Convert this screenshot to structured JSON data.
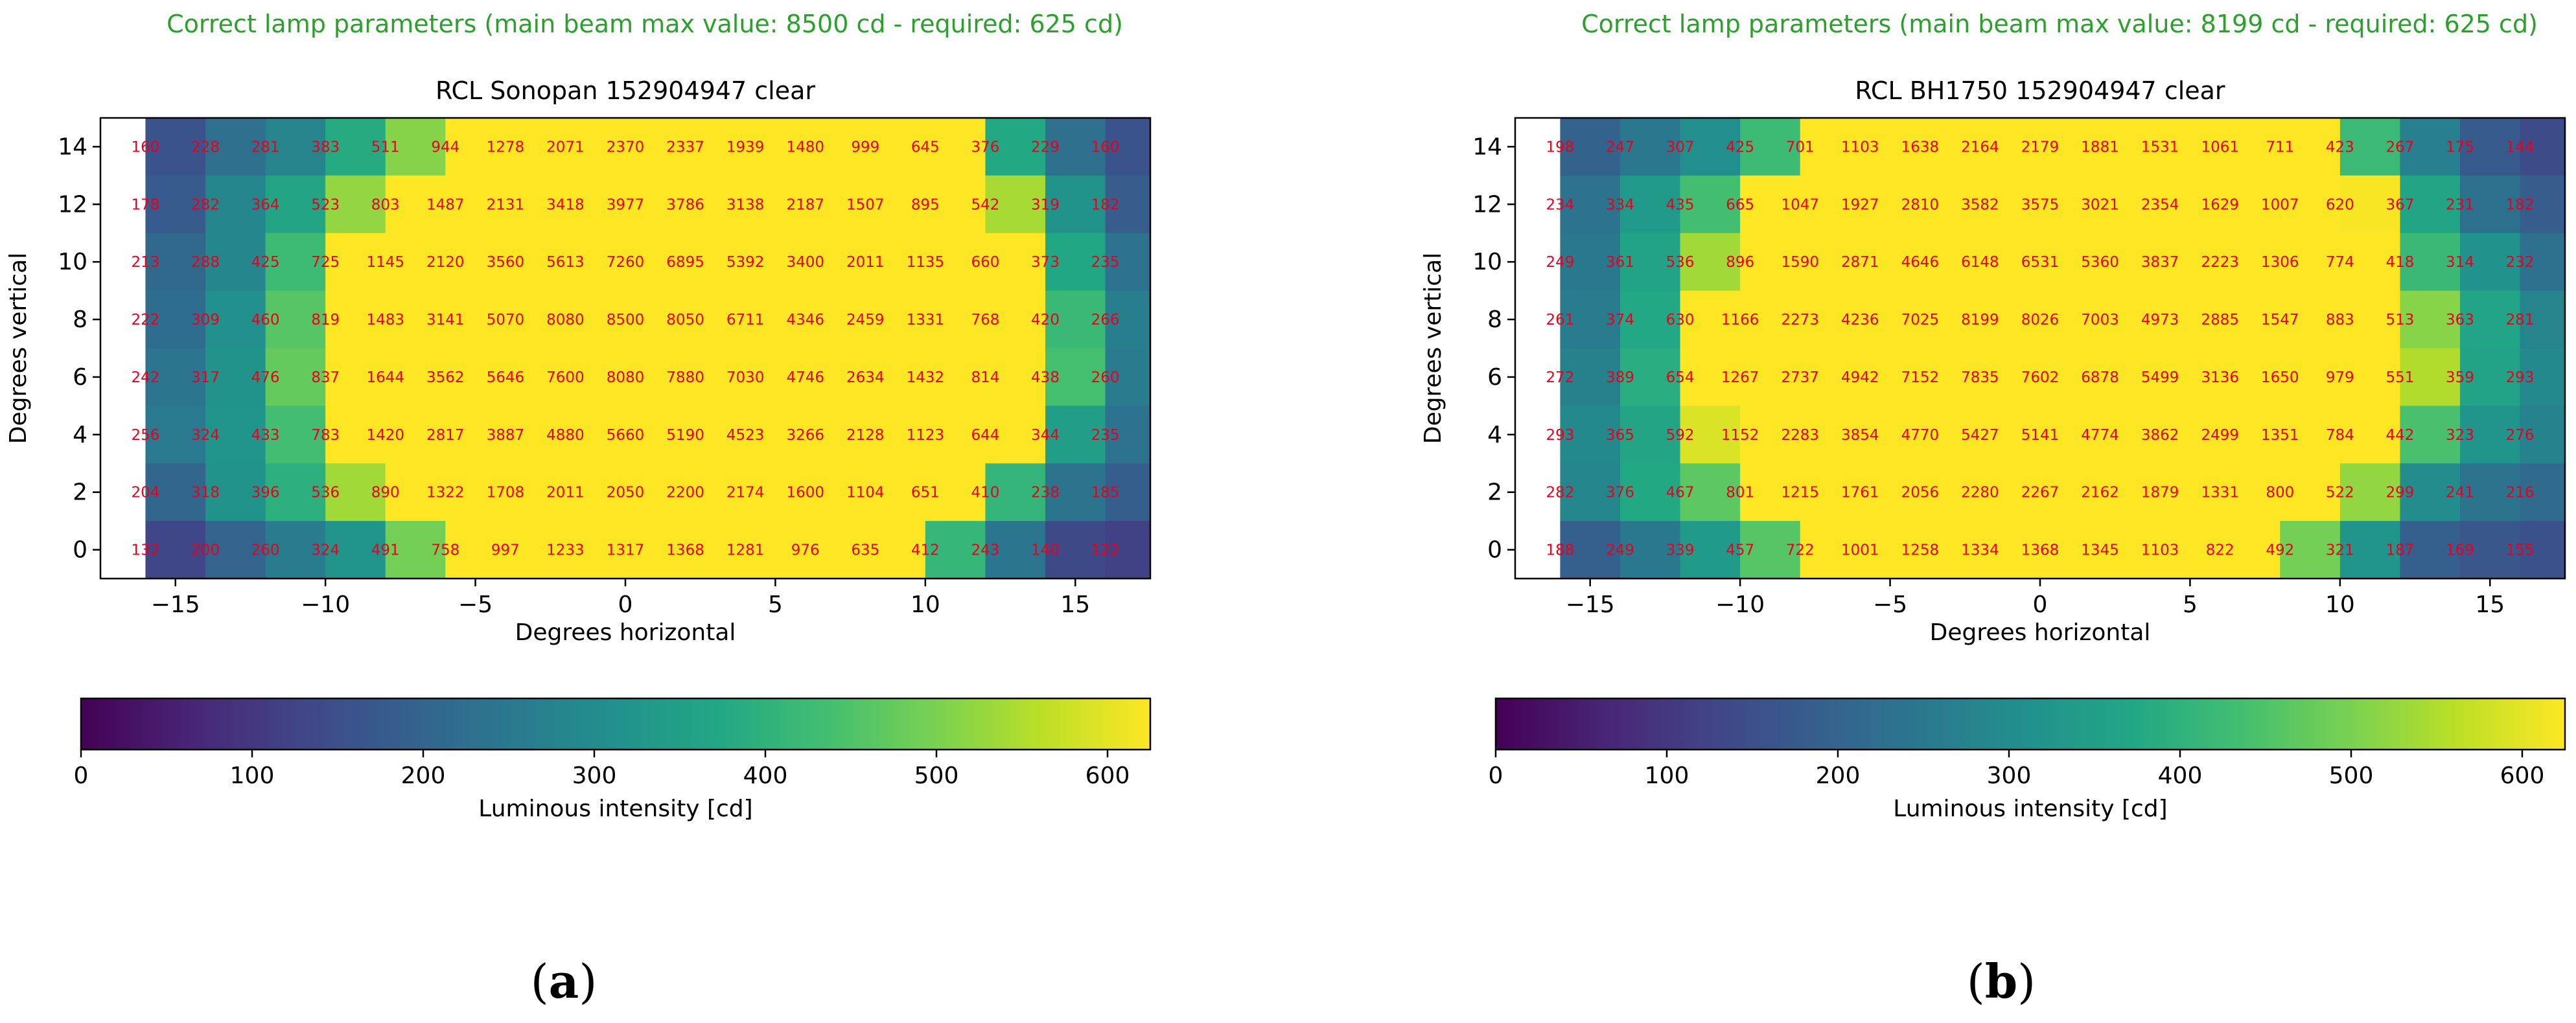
{
  "chart_data": [
    {
      "type": "heatmap",
      "status": "Correct lamp parameters (main beam max value: 8500 cd - required: 625 cd)",
      "status_color": "#2ca02c",
      "title": "RCL Sonopan 152904947 clear",
      "xlabel": "Degrees horizontal",
      "ylabel": "Degrees vertical",
      "xlim": [
        -17.5,
        17.5
      ],
      "ylim": [
        -1,
        15
      ],
      "x_ticks": [
        -15,
        -10,
        -5,
        0,
        5,
        10,
        15
      ],
      "y_ticks": [
        0,
        2,
        4,
        6,
        8,
        10,
        12,
        14
      ],
      "x": [
        -15,
        -13,
        -11,
        -9,
        -7,
        -5,
        -3,
        -1,
        1,
        3,
        5,
        7,
        9,
        11,
        13,
        15,
        17
      ],
      "y": [
        14,
        12,
        10,
        8,
        6,
        4,
        2,
        0
      ],
      "values": [
        [
          160,
          228,
          281,
          383,
          511,
          944,
          1278,
          2071,
          2370,
          2337,
          1939,
          1480,
          999,
          645,
          376,
          229,
          160
        ],
        [
          178,
          282,
          364,
          523,
          803,
          1487,
          2131,
          3418,
          3977,
          3786,
          3138,
          2187,
          1507,
          895,
          542,
          319,
          182
        ],
        [
          213,
          288,
          425,
          725,
          1145,
          2120,
          3560,
          5613,
          7260,
          6895,
          5392,
          3400,
          2011,
          1135,
          660,
          373,
          235
        ],
        [
          222,
          309,
          460,
          819,
          1483,
          3141,
          5070,
          8080,
          8500,
          8050,
          6711,
          4346,
          2459,
          1331,
          768,
          420,
          266
        ],
        [
          242,
          317,
          476,
          837,
          1644,
          3562,
          5646,
          7600,
          8080,
          7880,
          7030,
          4746,
          2634,
          1432,
          814,
          438,
          260
        ],
        [
          256,
          324,
          433,
          783,
          1420,
          2817,
          3887,
          4880,
          5660,
          5190,
          4523,
          3266,
          2128,
          1123,
          644,
          344,
          235
        ],
        [
          204,
          318,
          396,
          536,
          890,
          1322,
          1708,
          2011,
          2050,
          2200,
          2174,
          1600,
          1104,
          651,
          410,
          238,
          185
        ],
        [
          132,
          200,
          260,
          324,
          491,
          758,
          997,
          1233,
          1317,
          1368,
          1281,
          976,
          635,
          412,
          243,
          140,
          122
        ]
      ],
      "value_label_color": "#e8001c",
      "colorbar": {
        "label": "Luminous intensity [cd]",
        "range": [
          0,
          625
        ],
        "ticks": [
          0,
          100,
          200,
          300,
          400,
          500,
          600
        ],
        "colormap": "viridis"
      },
      "caption": "(a)"
    },
    {
      "type": "heatmap",
      "status": "Correct lamp parameters (main beam max value: 8199 cd - required: 625 cd)",
      "status_color": "#2ca02c",
      "title": "RCL BH1750 152904947 clear",
      "xlabel": "Degrees horizontal",
      "ylabel": "Degrees vertical",
      "xlim": [
        -17.5,
        17.5
      ],
      "ylim": [
        -1,
        15
      ],
      "x_ticks": [
        -15,
        -10,
        -5,
        0,
        5,
        10,
        15
      ],
      "y_ticks": [
        0,
        2,
        4,
        6,
        8,
        10,
        12,
        14
      ],
      "x": [
        -15,
        -13,
        -11,
        -9,
        -7,
        -5,
        -3,
        -1,
        1,
        3,
        5,
        7,
        9,
        11,
        13,
        15,
        17
      ],
      "y": [
        14,
        12,
        10,
        8,
        6,
        4,
        2,
        0
      ],
      "values": [
        [
          198,
          247,
          307,
          425,
          701,
          1103,
          1638,
          2164,
          2179,
          1881,
          1531,
          1061,
          711,
          423,
          267,
          175,
          144
        ],
        [
          234,
          334,
          435,
          665,
          1047,
          1927,
          2810,
          3582,
          3575,
          3021,
          2354,
          1629,
          1007,
          620,
          367,
          231,
          182
        ],
        [
          249,
          361,
          536,
          896,
          1590,
          2871,
          4646,
          6148,
          6531,
          5360,
          3837,
          2223,
          1306,
          774,
          418,
          314,
          232
        ],
        [
          261,
          374,
          630,
          1166,
          2273,
          4236,
          7025,
          8199,
          8026,
          7003,
          4973,
          2885,
          1547,
          883,
          513,
          363,
          281
        ],
        [
          272,
          389,
          654,
          1267,
          2737,
          4942,
          7152,
          7835,
          7602,
          6878,
          5499,
          3136,
          1650,
          979,
          551,
          359,
          293
        ],
        [
          293,
          365,
          592,
          1152,
          2283,
          3854,
          4770,
          5427,
          5141,
          4774,
          3862,
          2499,
          1351,
          784,
          442,
          323,
          276
        ],
        [
          282,
          376,
          467,
          801,
          1215,
          1761,
          2056,
          2280,
          2267,
          2162,
          1879,
          1331,
          800,
          522,
          299,
          241,
          216
        ],
        [
          188,
          249,
          339,
          457,
          722,
          1001,
          1258,
          1334,
          1368,
          1345,
          1103,
          822,
          492,
          321,
          187,
          169,
          155
        ]
      ],
      "value_label_color": "#e8001c",
      "colorbar": {
        "label": "Luminous intensity [cd]",
        "range": [
          0,
          625
        ],
        "ticks": [
          0,
          100,
          200,
          300,
          400,
          500,
          600
        ],
        "colormap": "viridis"
      },
      "caption": "(b)"
    }
  ]
}
